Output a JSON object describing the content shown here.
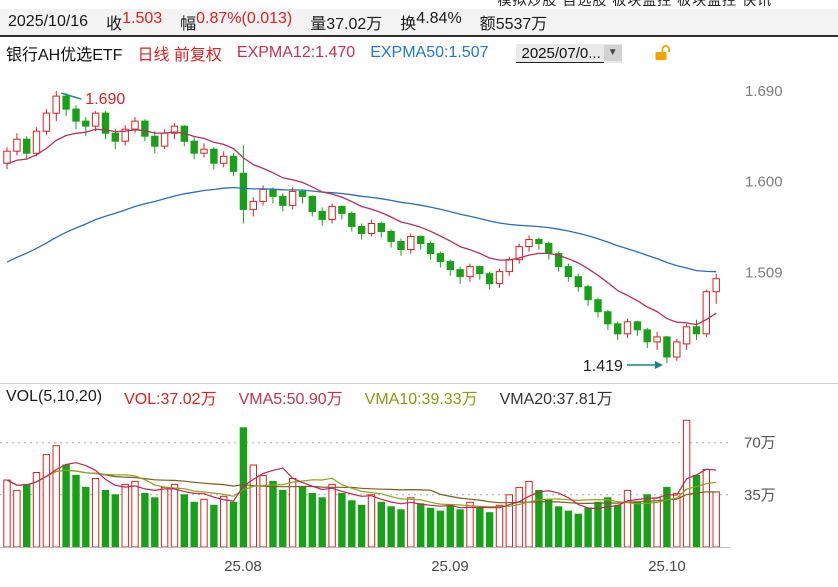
{
  "top_bar": {
    "items_clipped": "模拟炒股    自选股    板块监控    板块监控    快讯"
  },
  "quote_bar": {
    "date": "2025/10/16",
    "fields": [
      {
        "label": "收",
        "value": "1.503",
        "color": "#e01f1f"
      },
      {
        "label": "幅",
        "value": "0.87%(0.013)",
        "color": "#e01f1f"
      },
      {
        "label": "量",
        "value": "37.02万",
        "color": "#1a1a1a"
      },
      {
        "label": "换",
        "value": "4.84%",
        "color": "#1a1a1a"
      },
      {
        "label": "额",
        "value": "5537万",
        "color": "#1a1a1a"
      }
    ]
  },
  "title_bar": {
    "name": "银行AH优选ETF",
    "period_adjust": "日线 前复权",
    "expma12": "EXPMA12:1.470",
    "expma50": "EXPMA50:1.507",
    "date_selector": "2025/07/0...",
    "caret": "▼"
  },
  "volume_header": {
    "title": "VOL(5,10,20)",
    "vol": "VOL:37.02万",
    "vma5": "VMA5:50.90万",
    "vma10": "VMA10:39.33万",
    "vma20": "VMA20:37.81万"
  },
  "palette": {
    "red": "#e01f1f",
    "crimson": "#c9304f",
    "blue": "#1f78c8",
    "green_text": "#8a9a10",
    "dark_text": "#333333",
    "axis_gray": "#7d7d7d",
    "label_gray": "#4a4a4a"
  },
  "chart_data": {
    "type": "candlestick+volume",
    "title": "银行AH优选ETF 日线 前复权",
    "latest": {
      "date": "2025/10/16",
      "close": 1.503,
      "change_pct": "0.87%",
      "change": 0.013,
      "volume": "37.02万",
      "turnover": "4.84%",
      "amount": "5537万"
    },
    "price_range": [
      1.405,
      1.7
    ],
    "price_axis_labels": [
      {
        "text": "1.690",
        "price": 1.69
      },
      {
        "text": "1.600",
        "price": 1.6
      },
      {
        "text": "1.509",
        "price": 1.509
      }
    ],
    "volume_axis_labels": [
      {
        "text": "70万",
        "value": 70
      },
      {
        "text": "35万",
        "value": 35
      }
    ],
    "x_axis_labels": [
      {
        "text": "25.08",
        "index": 24
      },
      {
        "text": "25.09",
        "index": 45
      },
      {
        "text": "25.10",
        "index": 67
      }
    ],
    "annotations": [
      {
        "text": "1.690",
        "price": 1.69,
        "anchor_index": 5,
        "type": "peak",
        "color": "#e01f1f"
      },
      {
        "text": "1.419",
        "price": 1.419,
        "anchor_index": 67,
        "type": "trough",
        "color": "#222222"
      }
    ],
    "ema": [
      {
        "period": 12,
        "seed": 1.615,
        "last_label": 1.47
      },
      {
        "period": 50,
        "seed": 1.515,
        "last_label": 1.507
      }
    ],
    "vma_periods": [
      5,
      10,
      20
    ],
    "colors": {
      "up": "#e02020",
      "down": "#18a018",
      "ema12": "#b5305a",
      "ema50": "#2a6fb5",
      "vma5": "#c22553",
      "vma10": "#8fa31a",
      "vma20": "#7a5c1e",
      "annotation": "#18867d",
      "grid": "#aaaaaa"
    },
    "candles": [
      [
        1.618,
        1.634,
        1.612,
        1.63
      ],
      [
        1.63,
        1.648,
        1.626,
        1.642
      ],
      [
        1.642,
        1.645,
        1.622,
        1.628
      ],
      [
        1.628,
        1.654,
        1.625,
        1.65
      ],
      [
        1.65,
        1.672,
        1.646,
        1.668
      ],
      [
        1.668,
        1.69,
        1.66,
        1.685
      ],
      [
        1.685,
        1.688,
        1.665,
        1.672
      ],
      [
        1.672,
        1.676,
        1.652,
        1.66
      ],
      [
        1.66,
        1.664,
        1.645,
        1.655
      ],
      [
        1.655,
        1.67,
        1.65,
        1.668
      ],
      [
        1.668,
        1.67,
        1.642,
        1.648
      ],
      [
        1.648,
        1.652,
        1.632,
        1.64
      ],
      [
        1.64,
        1.656,
        1.636,
        1.652
      ],
      [
        1.652,
        1.664,
        1.648,
        1.66
      ],
      [
        1.66,
        1.662,
        1.64,
        1.645
      ],
      [
        1.645,
        1.65,
        1.628,
        1.635
      ],
      [
        1.635,
        1.652,
        1.632,
        1.648
      ],
      [
        1.648,
        1.658,
        1.642,
        1.655
      ],
      [
        1.655,
        1.656,
        1.635,
        1.64
      ],
      [
        1.64,
        1.644,
        1.622,
        1.628
      ],
      [
        1.628,
        1.638,
        1.624,
        1.632
      ],
      [
        1.632,
        1.634,
        1.612,
        1.618
      ],
      [
        1.618,
        1.63,
        1.614,
        1.625
      ],
      [
        1.625,
        1.628,
        1.605,
        1.61
      ],
      [
        1.608,
        1.636,
        1.558,
        1.572
      ],
      [
        1.572,
        1.584,
        1.565,
        1.58
      ],
      [
        1.58,
        1.596,
        1.576,
        1.592
      ],
      [
        1.592,
        1.594,
        1.578,
        1.585
      ],
      [
        1.585,
        1.588,
        1.57,
        1.576
      ],
      [
        1.576,
        1.594,
        1.572,
        1.59
      ],
      [
        1.59,
        1.592,
        1.578,
        1.585
      ],
      [
        1.585,
        1.586,
        1.565,
        1.57
      ],
      [
        1.57,
        1.574,
        1.556,
        1.562
      ],
      [
        1.562,
        1.578,
        1.558,
        1.575
      ],
      [
        1.575,
        1.576,
        1.562,
        1.568
      ],
      [
        1.568,
        1.57,
        1.55,
        1.555
      ],
      [
        1.555,
        1.558,
        1.542,
        1.548
      ],
      [
        1.548,
        1.562,
        1.545,
        1.558
      ],
      [
        1.558,
        1.56,
        1.544,
        1.55
      ],
      [
        1.55,
        1.552,
        1.534,
        1.54
      ],
      [
        1.54,
        1.543,
        1.526,
        1.532
      ],
      [
        1.532,
        1.548,
        1.528,
        1.545
      ],
      [
        1.545,
        1.546,
        1.532,
        1.538
      ],
      [
        1.538,
        1.54,
        1.522,
        1.528
      ],
      [
        1.528,
        1.53,
        1.514,
        1.52
      ],
      [
        1.52,
        1.522,
        1.506,
        1.512
      ],
      [
        1.512,
        1.515,
        1.498,
        1.505
      ],
      [
        1.505,
        1.518,
        1.5,
        1.515
      ],
      [
        1.515,
        1.516,
        1.502,
        1.508
      ],
      [
        1.508,
        1.51,
        1.492,
        1.498
      ],
      [
        1.498,
        1.513,
        1.494,
        1.51
      ],
      [
        1.51,
        1.525,
        1.506,
        1.522
      ],
      [
        1.522,
        1.538,
        1.518,
        1.535
      ],
      [
        1.535,
        1.546,
        1.53,
        1.542
      ],
      [
        1.542,
        1.544,
        1.532,
        1.538
      ],
      [
        1.538,
        1.54,
        1.522,
        1.528
      ],
      [
        1.528,
        1.53,
        1.51,
        1.515
      ],
      [
        1.515,
        1.518,
        1.5,
        1.505
      ],
      [
        1.505,
        1.508,
        1.49,
        1.495
      ],
      [
        1.495,
        1.497,
        1.476,
        1.482
      ],
      [
        1.482,
        1.484,
        1.464,
        1.47
      ],
      [
        1.47,
        1.472,
        1.452,
        1.458
      ],
      [
        1.458,
        1.46,
        1.442,
        1.448
      ],
      [
        1.448,
        1.463,
        1.444,
        1.46
      ],
      [
        1.46,
        1.461,
        1.446,
        1.452
      ],
      [
        1.452,
        1.454,
        1.434,
        1.44
      ],
      [
        1.44,
        1.45,
        1.432,
        1.445
      ],
      [
        1.445,
        1.446,
        1.419,
        1.425
      ],
      [
        1.425,
        1.443,
        1.421,
        1.44
      ],
      [
        1.438,
        1.458,
        1.432,
        1.455
      ],
      [
        1.455,
        1.462,
        1.442,
        1.448
      ],
      [
        1.448,
        1.492,
        1.445,
        1.49
      ],
      [
        1.49,
        1.508,
        1.478,
        1.503
      ]
    ],
    "volumes": [
      45,
      38,
      42,
      50,
      62,
      68,
      55,
      48,
      40,
      46,
      38,
      35,
      42,
      44,
      36,
      33,
      40,
      42,
      35,
      30,
      32,
      28,
      34,
      30,
      80,
      55,
      48,
      44,
      38,
      46,
      40,
      36,
      33,
      42,
      36,
      31,
      28,
      35,
      30,
      27,
      25,
      33,
      29,
      26,
      24,
      28,
      25,
      30,
      26,
      23,
      28,
      35,
      40,
      44,
      38,
      32,
      27,
      24,
      22,
      26,
      30,
      33,
      28,
      38,
      30,
      35,
      33,
      40,
      36,
      85,
      48,
      52,
      37
    ]
  }
}
